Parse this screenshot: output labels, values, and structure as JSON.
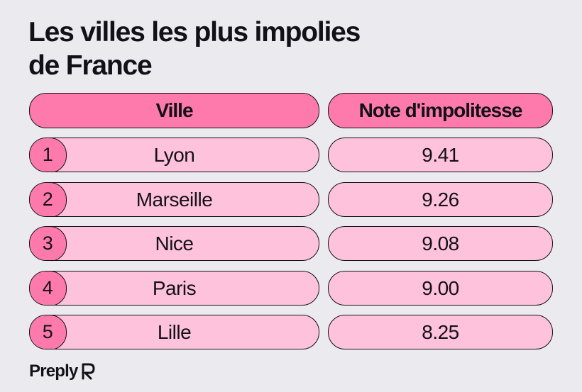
{
  "title_line1": "Les villes les plus impolies",
  "title_line2": "de France",
  "brand": {
    "name": "Preply",
    "icon": "preply-logo-icon"
  },
  "colors": {
    "background": "#ebeaee",
    "header": "#ff7aac",
    "cell": "#ffc2dc",
    "rank": "#ff7aac",
    "text": "#121117"
  },
  "chart_data": {
    "type": "table",
    "columns": [
      "Ville",
      "Note d'impolitesse"
    ],
    "rows": [
      {
        "rank": "1",
        "city": "Lyon",
        "score": "9.41"
      },
      {
        "rank": "2",
        "city": "Marseille",
        "score": "9.26"
      },
      {
        "rank": "3",
        "city": "Nice",
        "score": "9.08"
      },
      {
        "rank": "4",
        "city": "Paris",
        "score": "9.00"
      },
      {
        "rank": "5",
        "city": "Lille",
        "score": "8.25"
      }
    ]
  }
}
